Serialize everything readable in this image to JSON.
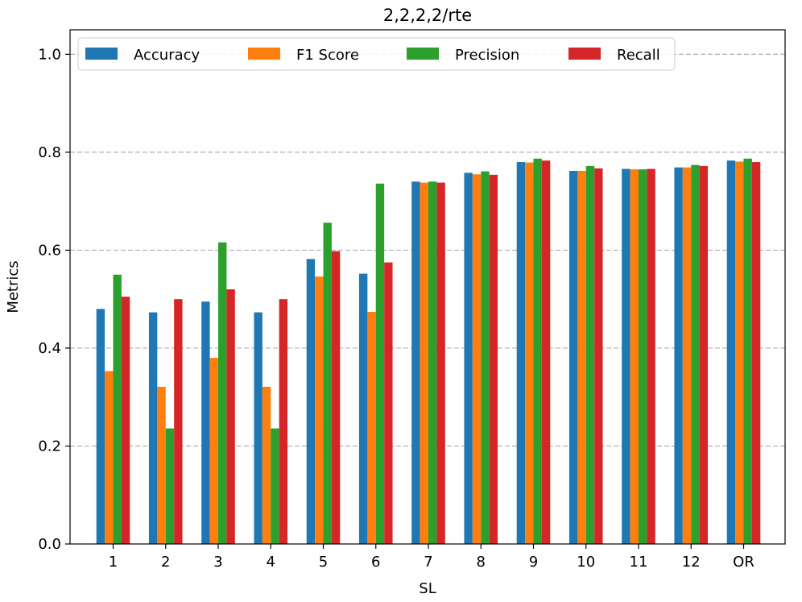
{
  "chart_data": {
    "type": "bar",
    "title": "2,2,2,2/rte",
    "xlabel": "SL",
    "ylabel": "Metrics",
    "ylim": [
      0,
      1.05
    ],
    "yticks": [
      "0.0",
      "0.2",
      "0.4",
      "0.6",
      "0.8",
      "1.0"
    ],
    "grid": "y-dashed",
    "legend_position": "top-left",
    "categories": [
      "1",
      "2",
      "3",
      "4",
      "5",
      "6",
      "7",
      "8",
      "9",
      "10",
      "11",
      "12",
      "OR"
    ],
    "series": [
      {
        "name": "Accuracy",
        "color": "#1f77b4",
        "values": [
          0.48,
          0.473,
          0.495,
          0.473,
          0.582,
          0.552,
          0.74,
          0.758,
          0.78,
          0.762,
          0.766,
          0.769,
          0.783
        ]
      },
      {
        "name": "F1 Score",
        "color": "#ff7f0e",
        "values": [
          0.353,
          0.321,
          0.38,
          0.321,
          0.546,
          0.474,
          0.738,
          0.755,
          0.779,
          0.762,
          0.765,
          0.769,
          0.781
        ]
      },
      {
        "name": "Precision",
        "color": "#2ca02c",
        "values": [
          0.55,
          0.236,
          0.616,
          0.236,
          0.656,
          0.736,
          0.74,
          0.761,
          0.787,
          0.772,
          0.765,
          0.774,
          0.787
        ]
      },
      {
        "name": "Recall",
        "color": "#d62728",
        "values": [
          0.505,
          0.5,
          0.52,
          0.5,
          0.598,
          0.575,
          0.738,
          0.754,
          0.783,
          0.767,
          0.766,
          0.772,
          0.78
        ]
      }
    ]
  }
}
